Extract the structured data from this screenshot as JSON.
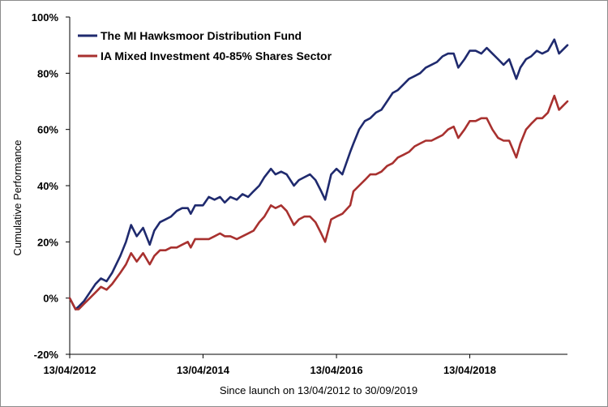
{
  "chart_data": {
    "type": "line",
    "title": "",
    "xlabel": "Since launch on 13/04/2012 to 30/09/2019",
    "ylabel": "Cumulative Performance",
    "ylim": [
      -20,
      100
    ],
    "xlim": [
      "2012-04-13",
      "2019-09-30"
    ],
    "yticks": [
      -20,
      0,
      20,
      40,
      60,
      80,
      100
    ],
    "ytick_labels": [
      "-20%",
      "0%",
      "20%",
      "40%",
      "60%",
      "80%",
      "100%"
    ],
    "xticks": [
      "2012-04-13",
      "2014-04-13",
      "2016-04-13",
      "2018-04-13"
    ],
    "xtick_labels": [
      "13/04/2012",
      "13/04/2014",
      "13/04/2016",
      "13/04/2018"
    ],
    "grid": false,
    "legend_position": "top-left",
    "series": [
      {
        "name": "The MI Hawksmoor Distribution Fund",
        "color": "#1f2a6e",
        "x": [
          "2012-04-13",
          "2012-05-15",
          "2012-06-01",
          "2012-07-01",
          "2012-08-01",
          "2012-09-01",
          "2012-10-01",
          "2012-11-01",
          "2012-12-01",
          "2013-01-15",
          "2013-02-15",
          "2013-03-15",
          "2013-04-15",
          "2013-05-20",
          "2013-06-25",
          "2013-07-20",
          "2013-08-20",
          "2013-09-20",
          "2013-10-20",
          "2013-11-20",
          "2013-12-20",
          "2014-01-20",
          "2014-02-05",
          "2014-03-01",
          "2014-04-13",
          "2014-05-15",
          "2014-06-15",
          "2014-07-15",
          "2014-08-10",
          "2014-09-10",
          "2014-10-15",
          "2014-11-15",
          "2014-12-16",
          "2015-01-15",
          "2015-02-15",
          "2015-03-15",
          "2015-04-20",
          "2015-05-15",
          "2015-06-15",
          "2015-07-15",
          "2015-08-24",
          "2015-09-20",
          "2015-10-20",
          "2015-11-20",
          "2015-12-20",
          "2016-01-20",
          "2016-02-11",
          "2016-03-15",
          "2016-04-13",
          "2016-05-15",
          "2016-06-27",
          "2016-07-15",
          "2016-08-15",
          "2016-09-15",
          "2016-10-15",
          "2016-11-15",
          "2016-12-15",
          "2017-01-15",
          "2017-02-15",
          "2017-03-15",
          "2017-04-15",
          "2017-05-15",
          "2017-06-15",
          "2017-07-15",
          "2017-08-15",
          "2017-09-15",
          "2017-10-15",
          "2017-11-15",
          "2017-12-15",
          "2018-01-15",
          "2018-02-09",
          "2018-03-15",
          "2018-04-13",
          "2018-05-15",
          "2018-06-15",
          "2018-07-15",
          "2018-08-15",
          "2018-09-15",
          "2018-10-15",
          "2018-11-15",
          "2018-12-24",
          "2019-01-15",
          "2019-02-15",
          "2019-03-15",
          "2019-04-15",
          "2019-05-15",
          "2019-06-15",
          "2019-07-20",
          "2019-08-15",
          "2019-09-30"
        ],
        "y": [
          0,
          -4,
          -3,
          -1,
          2,
          5,
          7,
          6,
          9,
          15,
          20,
          26,
          22,
          25,
          19,
          24,
          27,
          28,
          29,
          31,
          32,
          32,
          30,
          33,
          33,
          36,
          35,
          36,
          34,
          36,
          35,
          37,
          36,
          38,
          40,
          43,
          46,
          44,
          45,
          44,
          40,
          42,
          43,
          44,
          42,
          38,
          35,
          44,
          46,
          44,
          52,
          55,
          60,
          63,
          64,
          66,
          67,
          70,
          73,
          74,
          76,
          78,
          79,
          80,
          82,
          83,
          84,
          86,
          87,
          87,
          82,
          85,
          88,
          88,
          87,
          89,
          87,
          85,
          83,
          85,
          78,
          82,
          85,
          86,
          88,
          87,
          88,
          92,
          87,
          90
        ]
      },
      {
        "name": "IA Mixed Investment 40-85% Shares Sector",
        "color": "#a8312f",
        "x": [
          "2012-04-13",
          "2012-05-15",
          "2012-06-01",
          "2012-07-01",
          "2012-08-01",
          "2012-09-01",
          "2012-10-01",
          "2012-11-01",
          "2012-12-01",
          "2013-01-15",
          "2013-02-15",
          "2013-03-15",
          "2013-04-15",
          "2013-05-20",
          "2013-06-25",
          "2013-07-20",
          "2013-08-20",
          "2013-09-20",
          "2013-10-20",
          "2013-11-20",
          "2013-12-20",
          "2014-01-20",
          "2014-02-05",
          "2014-03-01",
          "2014-04-13",
          "2014-05-15",
          "2014-06-15",
          "2014-07-15",
          "2014-08-10",
          "2014-09-10",
          "2014-10-15",
          "2014-11-15",
          "2014-12-16",
          "2015-01-15",
          "2015-02-15",
          "2015-03-15",
          "2015-04-20",
          "2015-05-15",
          "2015-06-15",
          "2015-07-15",
          "2015-08-24",
          "2015-09-20",
          "2015-10-20",
          "2015-11-20",
          "2015-12-20",
          "2016-01-20",
          "2016-02-11",
          "2016-03-15",
          "2016-04-13",
          "2016-05-15",
          "2016-06-27",
          "2016-07-15",
          "2016-08-15",
          "2016-09-15",
          "2016-10-15",
          "2016-11-15",
          "2016-12-15",
          "2017-01-15",
          "2017-02-15",
          "2017-03-15",
          "2017-04-15",
          "2017-05-15",
          "2017-06-15",
          "2017-07-15",
          "2017-08-15",
          "2017-09-15",
          "2017-10-15",
          "2017-11-15",
          "2017-12-15",
          "2018-01-15",
          "2018-02-09",
          "2018-03-15",
          "2018-04-13",
          "2018-05-15",
          "2018-06-15",
          "2018-07-15",
          "2018-08-15",
          "2018-09-15",
          "2018-10-15",
          "2018-11-15",
          "2018-12-24",
          "2019-01-15",
          "2019-02-15",
          "2019-03-15",
          "2019-04-15",
          "2019-05-15",
          "2019-06-15",
          "2019-07-20",
          "2019-08-15",
          "2019-09-30"
        ],
        "y": [
          0,
          -4,
          -4,
          -2,
          0,
          2,
          4,
          3,
          5,
          9,
          12,
          16,
          13,
          16,
          12,
          15,
          17,
          17,
          18,
          18,
          19,
          20,
          18,
          21,
          21,
          21,
          22,
          23,
          22,
          22,
          21,
          22,
          23,
          24,
          27,
          29,
          33,
          32,
          33,
          31,
          26,
          28,
          29,
          29,
          27,
          23,
          20,
          28,
          29,
          30,
          33,
          38,
          40,
          42,
          44,
          44,
          45,
          47,
          48,
          50,
          51,
          52,
          54,
          55,
          56,
          56,
          57,
          58,
          60,
          61,
          57,
          60,
          63,
          63,
          64,
          64,
          60,
          57,
          56,
          56,
          50,
          55,
          60,
          62,
          64,
          64,
          66,
          72,
          67,
          70
        ]
      }
    ]
  }
}
